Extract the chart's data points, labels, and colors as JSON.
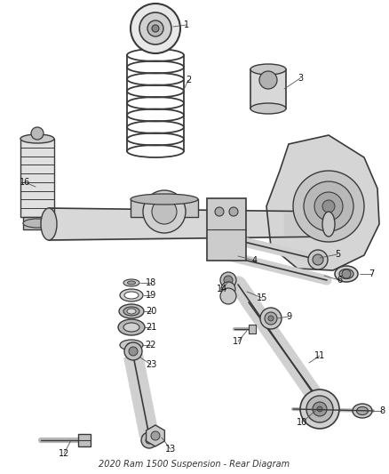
{
  "title": "2020 Ram 1500 Suspension - Rear Diagram",
  "bg_color": "#ffffff",
  "lc": "#3a3a3a",
  "fig_width": 4.38,
  "fig_height": 5.33,
  "dpi": 100
}
